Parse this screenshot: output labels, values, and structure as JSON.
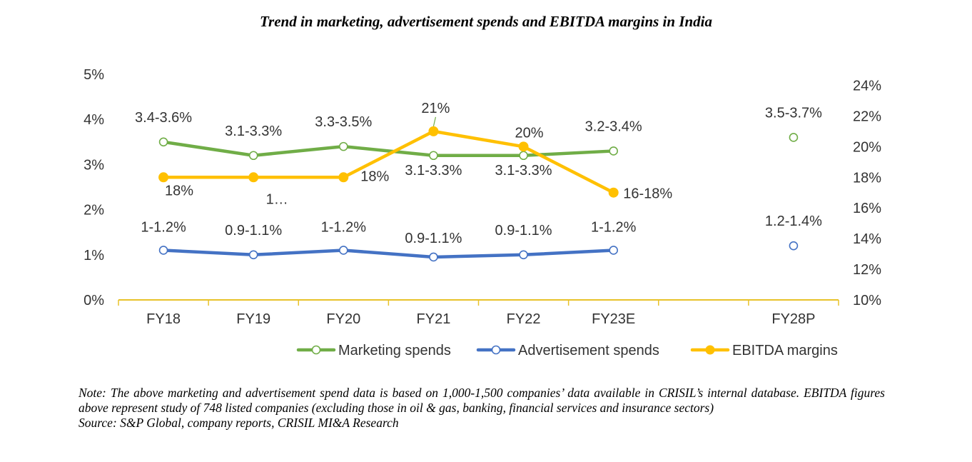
{
  "chart_data": {
    "type": "line",
    "title": "Trend in marketing, advertisement spends and EBITDA margins in India",
    "categories": [
      "FY18",
      "FY19",
      "FY20",
      "FY21",
      "FY22",
      "FY23E",
      "",
      "FY28P"
    ],
    "y_left": {
      "min": 0,
      "max": 5,
      "ticks": [
        "0%",
        "1%",
        "2%",
        "3%",
        "4%",
        "5%"
      ]
    },
    "y_right": {
      "min": 10,
      "max": 25,
      "ticks": [
        "10%",
        "12%",
        "14%",
        "16%",
        "18%",
        "20%",
        "22%",
        "24%"
      ]
    },
    "grid": false,
    "legend_position": "bottom",
    "series": [
      {
        "name": "Marketing spends",
        "axis": "left",
        "color": "#70AD47",
        "marker": "hollow-circle",
        "values": [
          3.5,
          3.2,
          3.4,
          3.2,
          3.2,
          3.3,
          null,
          3.6
        ],
        "labels": [
          "3.4-3.6%",
          "3.1-3.3%",
          "3.3-3.5%",
          "3.1-3.3%",
          "3.1-3.3%",
          "3.2-3.4%",
          "",
          "3.5-3.7%"
        ]
      },
      {
        "name": "Advertisement spends",
        "axis": "left",
        "color": "#4472C4",
        "marker": "hollow-circle",
        "values": [
          1.1,
          1.0,
          1.1,
          0.95,
          1.0,
          1.1,
          null,
          1.2
        ],
        "labels": [
          "1-1.2%",
          "0.9-1.1%",
          "1-1.2%",
          "0.9-1.1%",
          "0.9-1.1%",
          "1-1.2%",
          "",
          "1.2-1.4%"
        ]
      },
      {
        "name": "EBITDA margins",
        "axis": "right",
        "color": "#FFC000",
        "marker": "filled-circle",
        "values": [
          18,
          18,
          18,
          21,
          20,
          17,
          null,
          null
        ],
        "labels": [
          "18%",
          "1…",
          "18%",
          "21%",
          "20%",
          "16-18%",
          "",
          ""
        ]
      }
    ]
  },
  "notes": {
    "note": "Note: The above marketing and advertisement spend data is based on 1,000-1,500 companies’ data available in CRISIL’s internal database. EBITDA figures above represent study of 748 listed companies (excluding those in oil & gas, banking, financial services and insurance sectors)",
    "source": "Source: S&P Global, company reports, CRISIL MI&A Research"
  }
}
